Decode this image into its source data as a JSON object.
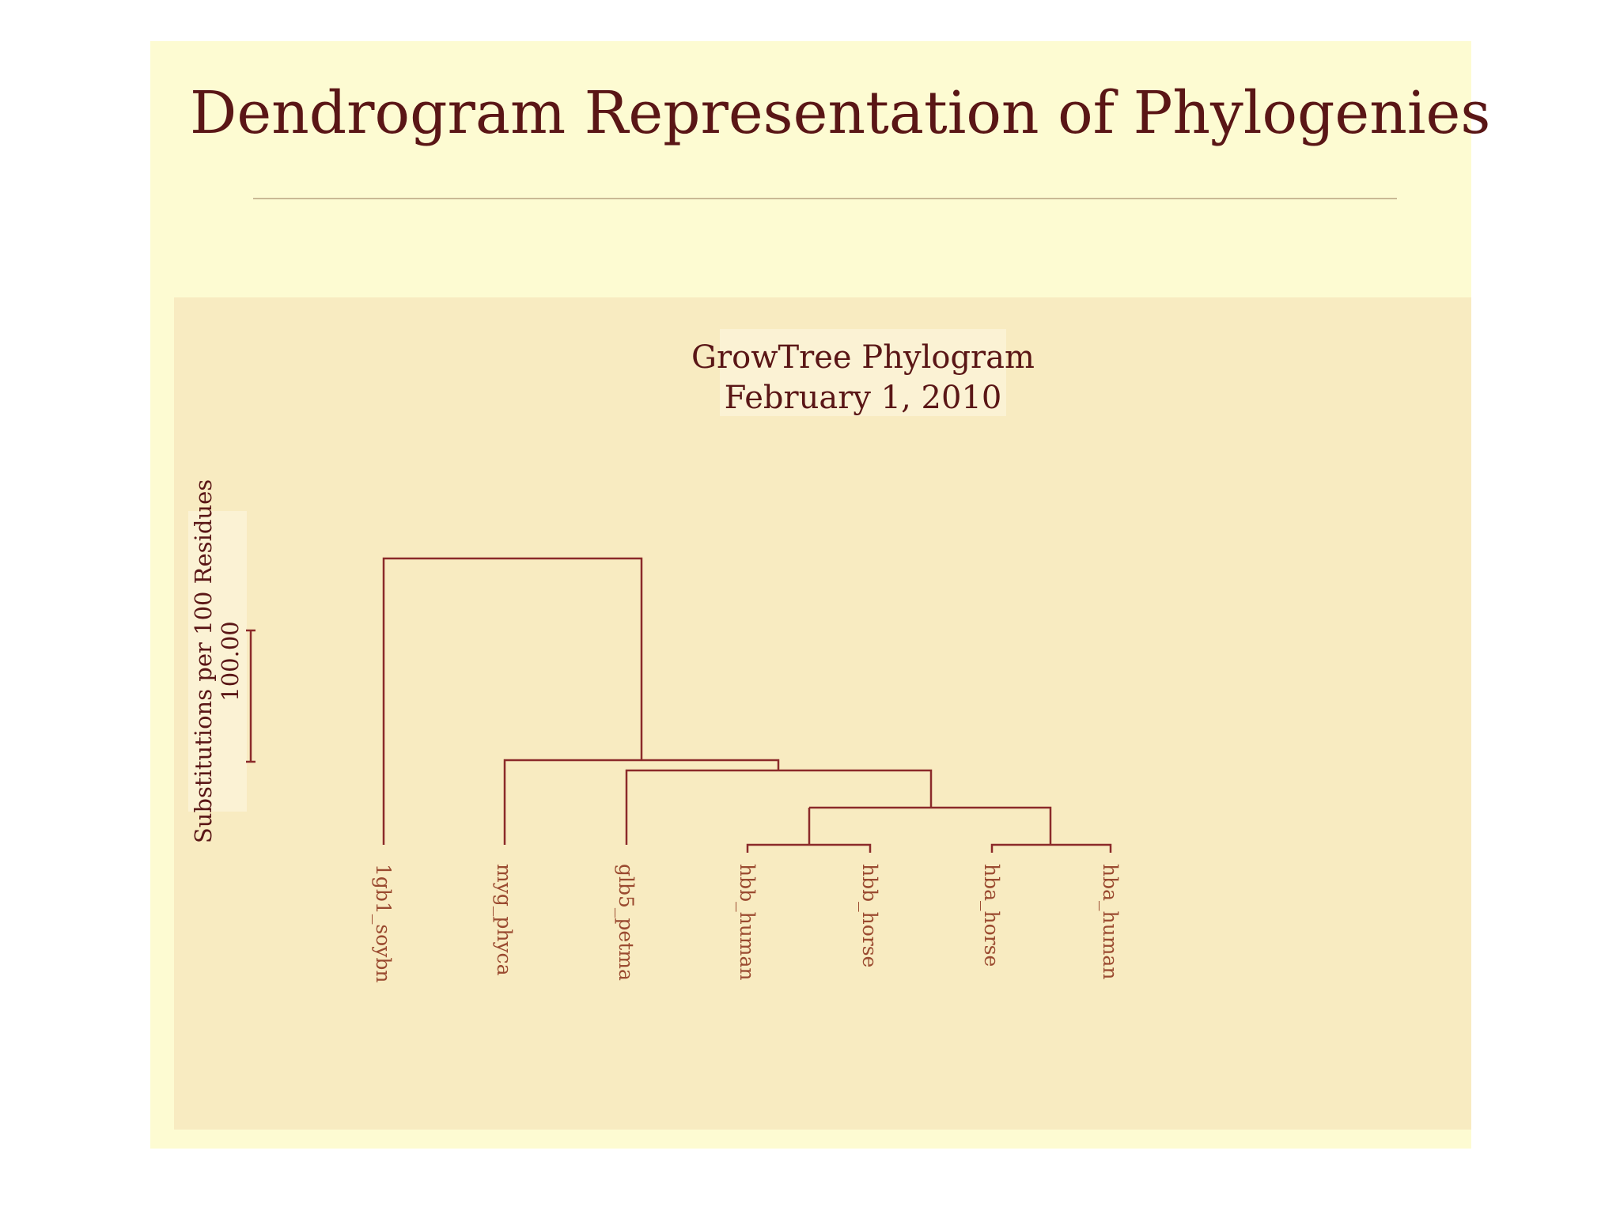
{
  "slide": {
    "title": "Dendrogram Representation of Phylogenies"
  },
  "figure": {
    "header_line1": "GrowTree Phylogram",
    "header_line2": "February 1, 2010",
    "scale_label": "Substitutions per 100 Residues",
    "scale_value": "100.00"
  },
  "tree": {
    "leaves": [
      "1gb1_soybn",
      "myg_phyca",
      "glb5_petma",
      "hbb_human",
      "hbb_horse",
      "hba_horse",
      "hba_human"
    ]
  },
  "colors": {
    "slide_background": "#fdfbd2",
    "panel_background": "#f8ebc1",
    "title_text": "#5a1616",
    "tree_lines": "#8b2a2a",
    "leaf_labels": "#9a4a30"
  }
}
